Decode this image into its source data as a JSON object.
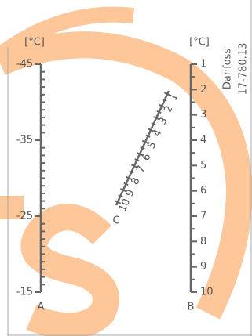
{
  "scales": {
    "a": {
      "unit": "[°C]",
      "letter": "A",
      "ticks": [
        "-45",
        "-35",
        "-25",
        "-15"
      ]
    },
    "b": {
      "unit": "[°C]",
      "letter": "B",
      "ticks": [
        "1",
        "2",
        "3",
        "4",
        "5",
        "6",
        "7",
        "8",
        "9",
        "10"
      ]
    },
    "c": {
      "letter": "C",
      "ticks": [
        "1",
        "2",
        "3",
        "4",
        "5",
        "6",
        "7",
        "8",
        "9",
        "10"
      ]
    }
  },
  "brand": "Danfoss",
  "code": "17-780.13"
}
